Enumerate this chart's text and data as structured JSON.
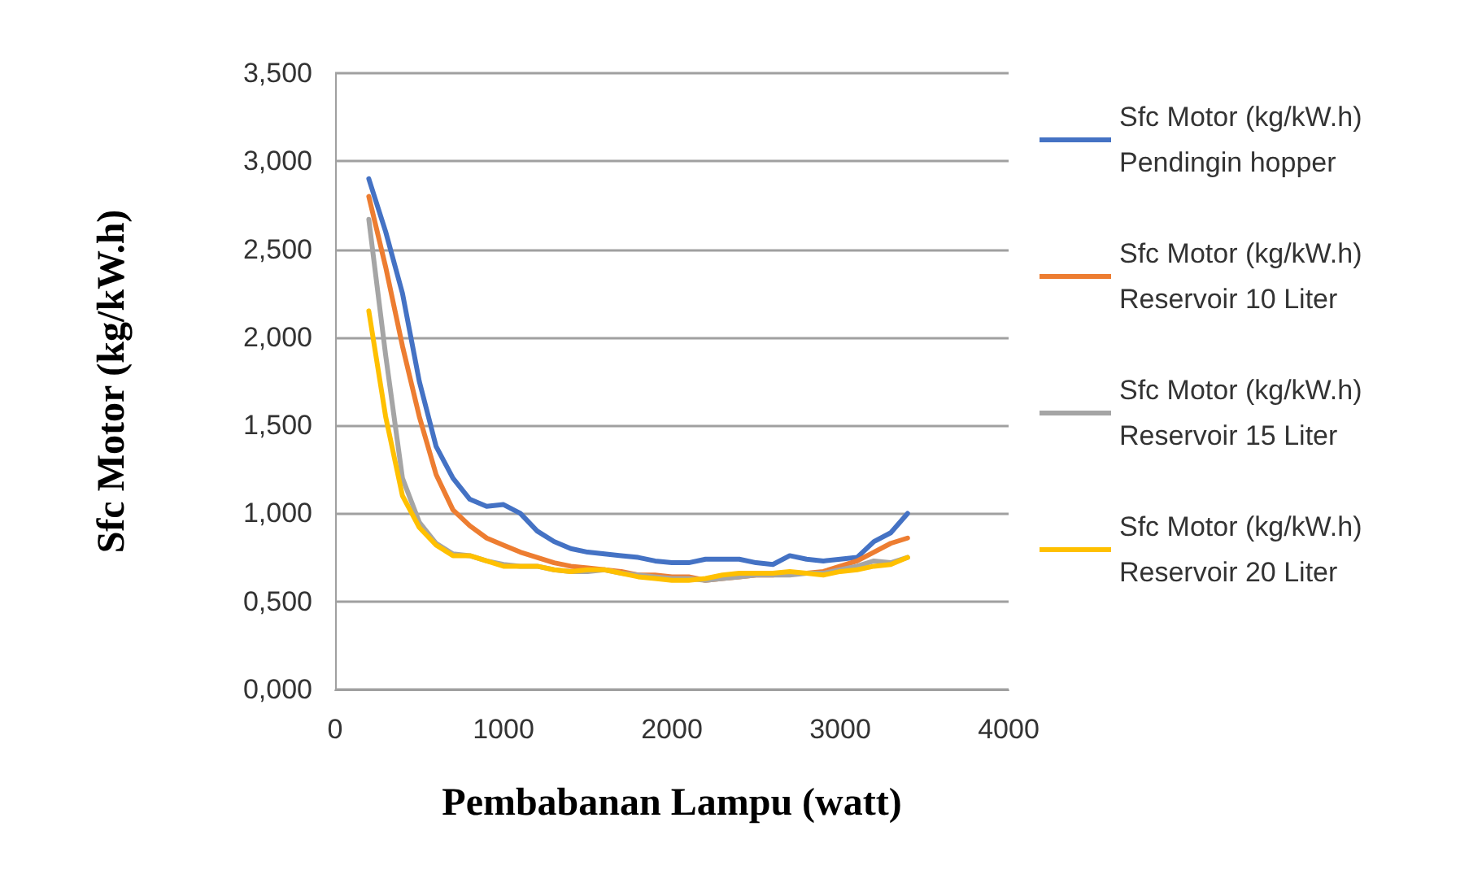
{
  "chart_data": {
    "type": "line",
    "xlabel": "Pembabanan Lampu (watt)",
    "ylabel": "Sfc Motor (kg/kW.h)",
    "x": [
      200,
      300,
      400,
      500,
      600,
      700,
      800,
      900,
      1000,
      1100,
      1200,
      1300,
      1400,
      1500,
      1600,
      1700,
      1800,
      1900,
      2000,
      2100,
      2200,
      2300,
      2400,
      2500,
      2600,
      2700,
      2800,
      2900,
      3000,
      3100,
      3200,
      3300,
      3400
    ],
    "series": [
      {
        "name": "Sfc Motor (kg/kW.h) Pendingin hopper",
        "color": "#4472c4",
        "values": [
          2.9,
          2.6,
          2.25,
          1.75,
          1.38,
          1.2,
          1.08,
          1.04,
          1.05,
          1.0,
          0.9,
          0.84,
          0.8,
          0.78,
          0.77,
          0.76,
          0.75,
          0.73,
          0.72,
          0.72,
          0.74,
          0.74,
          0.74,
          0.72,
          0.71,
          0.76,
          0.74,
          0.73,
          0.74,
          0.75,
          0.84,
          0.89,
          1.0
        ]
      },
      {
        "name": "Sfc Motor (kg/kW.h) Reservoir 10 Liter",
        "color": "#ed7d31",
        "values": [
          2.8,
          2.4,
          1.95,
          1.55,
          1.22,
          1.02,
          0.93,
          0.86,
          0.82,
          0.78,
          0.75,
          0.72,
          0.7,
          0.69,
          0.68,
          0.67,
          0.65,
          0.65,
          0.64,
          0.64,
          0.62,
          0.63,
          0.64,
          0.65,
          0.65,
          0.66,
          0.66,
          0.67,
          0.7,
          0.73,
          0.78,
          0.83,
          0.86
        ]
      },
      {
        "name": "Sfc Motor (kg/kW.h) Reservoir 15 Liter",
        "color": "#a5a5a5",
        "values": [
          2.67,
          1.9,
          1.2,
          0.95,
          0.83,
          0.77,
          0.76,
          0.73,
          0.71,
          0.7,
          0.7,
          0.68,
          0.67,
          0.67,
          0.68,
          0.66,
          0.65,
          0.64,
          0.63,
          0.63,
          0.62,
          0.63,
          0.64,
          0.65,
          0.65,
          0.65,
          0.66,
          0.66,
          0.68,
          0.7,
          0.73,
          0.72,
          0.75
        ]
      },
      {
        "name": "Sfc Motor (kg/kW.h) Reservoir 20 Liter",
        "color": "#ffc000",
        "values": [
          2.15,
          1.55,
          1.1,
          0.92,
          0.82,
          0.76,
          0.76,
          0.73,
          0.7,
          0.7,
          0.7,
          0.68,
          0.67,
          0.68,
          0.68,
          0.66,
          0.64,
          0.63,
          0.62,
          0.62,
          0.63,
          0.65,
          0.66,
          0.66,
          0.66,
          0.67,
          0.66,
          0.65,
          0.67,
          0.68,
          0.7,
          0.71,
          0.75
        ]
      }
    ],
    "xlim": [
      0,
      4000
    ],
    "xticks": [
      0,
      1000,
      2000,
      3000,
      4000
    ],
    "ylim": [
      0,
      3.5
    ],
    "yticks": [
      {
        "value": 0,
        "label": "0,000"
      },
      {
        "value": 0.5,
        "label": "0,500"
      },
      {
        "value": 1,
        "label": "1,000"
      },
      {
        "value": 1.5,
        "label": "1,500"
      },
      {
        "value": 2,
        "label": "2,000"
      },
      {
        "value": 2.5,
        "label": "2,500"
      },
      {
        "value": 3,
        "label": "3,000"
      },
      {
        "value": 3.5,
        "label": "3,500"
      }
    ],
    "grid": "y",
    "legend": "right",
    "marker": "none",
    "line_style": "solid"
  }
}
